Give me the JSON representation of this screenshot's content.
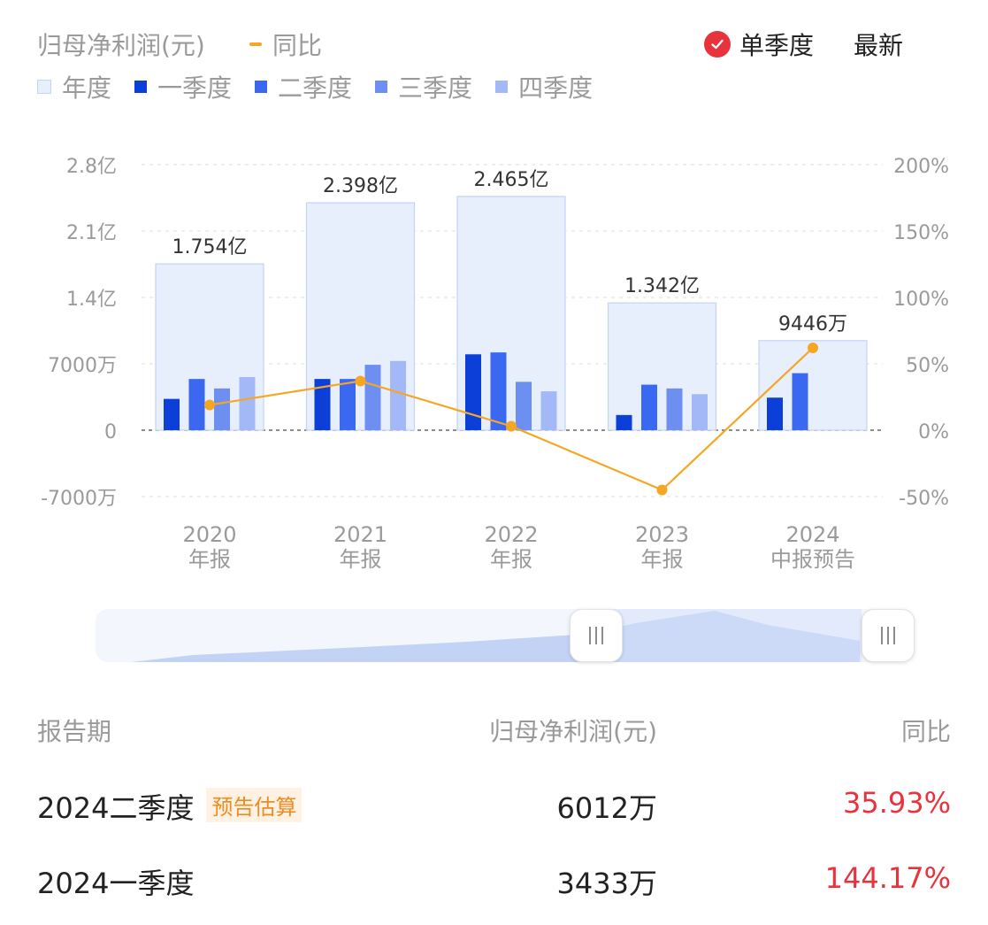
{
  "header": {
    "title": "归母净利润(元)",
    "yoy_label": "同比",
    "mode_label": "单季度",
    "latest_label": "最新"
  },
  "legend": {
    "annual": "年度",
    "q1": "一季度",
    "q2": "二季度",
    "q3": "三季度",
    "q4": "四季度"
  },
  "colors": {
    "annual_fill": "#e7eefc",
    "annual_stroke": "#c5d4f3",
    "q1": "#0b3fd8",
    "q2": "#3b68f0",
    "q3": "#6d8ff2",
    "q4": "#a3b9f7",
    "yoy_line": "#f5a623",
    "positive": "#e8323c",
    "tag": "#f08a22"
  },
  "chart_data": {
    "type": "bar",
    "categories": [
      [
        "2020",
        "年报"
      ],
      [
        "2021",
        "年报"
      ],
      [
        "2022",
        "年报"
      ],
      [
        "2023",
        "年报"
      ],
      [
        "2024",
        "中报预告"
      ]
    ],
    "annual_values": [
      17540,
      23980,
      24650,
      13420,
      9446
    ],
    "annual_labels": [
      "1.754亿",
      "2.398亿",
      "2.465亿",
      "1.342亿",
      "9446万"
    ],
    "series": [
      {
        "name": "一季度",
        "values": [
          3300,
          5400,
          8000,
          1600,
          3433
        ]
      },
      {
        "name": "二季度",
        "values": [
          5400,
          5400,
          8200,
          4800,
          6012
        ]
      },
      {
        "name": "三季度",
        "values": [
          4400,
          6900,
          5100,
          4400,
          null
        ]
      },
      {
        "name": "四季度",
        "values": [
          5600,
          7300,
          4100,
          3800,
          null
        ]
      }
    ],
    "yoy": {
      "name": "同比",
      "values": [
        19,
        37,
        3,
        -45,
        62
      ]
    },
    "left_axis": {
      "ticks": [
        28000,
        21000,
        14000,
        7000,
        0,
        -7000
      ],
      "tick_labels": [
        "2.8亿",
        "2.1亿",
        "1.4亿",
        "7000万",
        "0",
        "-7000万"
      ],
      "ylim": [
        -7000,
        28000
      ],
      "unit": "万"
    },
    "right_axis": {
      "ticks": [
        200,
        150,
        100,
        50,
        0,
        -50
      ],
      "tick_labels": [
        "200%",
        "150%",
        "100%",
        "50%",
        "0%",
        "-50%"
      ],
      "ylim": [
        -50,
        200
      ]
    },
    "grid": "dashed"
  },
  "table": {
    "headers": [
      "报告期",
      "归母净利润(元)",
      "同比"
    ],
    "rows": [
      {
        "period": "2024二季度",
        "tag": "预告估算",
        "value": "6012万",
        "yoy": "35.93%"
      },
      {
        "period": "2024一季度",
        "tag": "",
        "value": "3433万",
        "yoy": "144.17%"
      }
    ]
  }
}
